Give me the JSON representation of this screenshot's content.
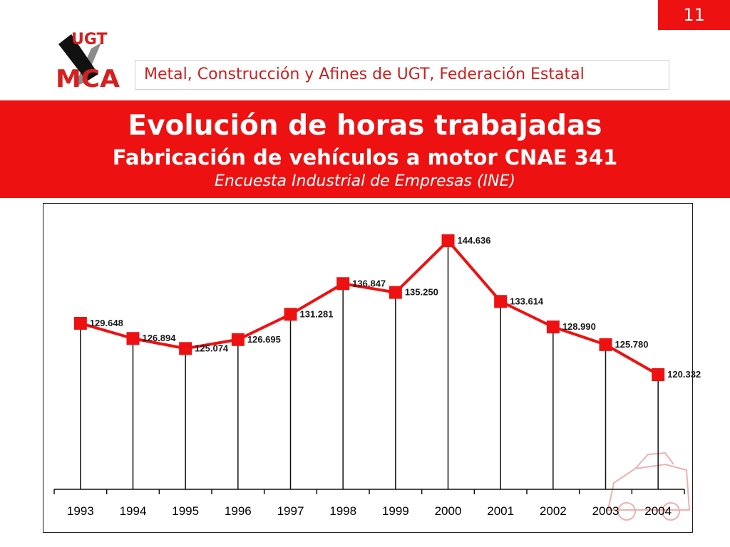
{
  "slide": {
    "page_number": "11",
    "logo_text_top": "UGT",
    "logo_text_bottom": "MCA",
    "org_name": "Metal, Construcción y Afines de UGT, Federación Estatal",
    "title": "Evolución de horas trabajadas",
    "subtitle": "Fabricación de vehículos a motor CNAE 341",
    "source": "Encuesta Industrial de Empresas (INE)"
  },
  "colors": {
    "brand_red": "#ee1111",
    "series_red": "#ee1111",
    "text_dark": "#111111"
  },
  "chart_data": {
    "type": "line",
    "title": "",
    "xlabel": "",
    "ylabel": "",
    "categories": [
      "1993",
      "1994",
      "1995",
      "1996",
      "1997",
      "1998",
      "1999",
      "2000",
      "2001",
      "2002",
      "2003",
      "2004"
    ],
    "series": [
      {
        "values": [
          129648,
          126894,
          125074,
          126695,
          131281,
          136847,
          135250,
          144636,
          133614,
          128990,
          125780,
          120332
        ],
        "labels": [
          "129.648",
          "126.894",
          "125.074",
          "126.695",
          "131.281",
          "136.847",
          "135.250",
          "144.636",
          "133.614",
          "128.990",
          "125.780",
          "120.332"
        ]
      }
    ],
    "drop_lines": true,
    "marker": "square",
    "grid": false,
    "legend": "none"
  }
}
